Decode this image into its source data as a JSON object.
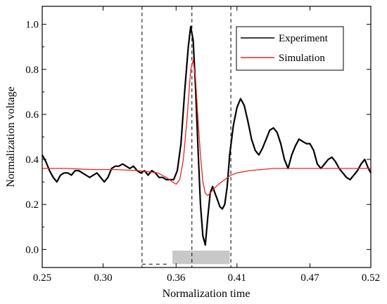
{
  "chart_data": {
    "type": "line",
    "xlabel": "Normalization time",
    "ylabel": "Normalization voltage",
    "xlim": [
      0.25,
      0.52
    ],
    "ylim": [
      -0.08,
      1.08
    ],
    "xticks": [
      "0.25",
      "0.30",
      "0.36",
      "0.41",
      "0.47",
      "0.52"
    ],
    "xtick_values": [
      0.25,
      0.3,
      0.36,
      0.41,
      0.47,
      0.52
    ],
    "yticks": [
      "0.0",
      "0.2",
      "0.4",
      "0.6",
      "0.8",
      "1.0"
    ],
    "ytick_values": [
      0.0,
      0.2,
      0.4,
      0.6,
      0.8,
      1.0
    ],
    "grid": false,
    "legend_position": "top-right",
    "series": [
      {
        "name": "Experiment",
        "color": "#000000",
        "x": [
          0.25,
          0.253,
          0.256,
          0.259,
          0.262,
          0.265,
          0.268,
          0.271,
          0.274,
          0.277,
          0.28,
          0.283,
          0.286,
          0.289,
          0.292,
          0.295,
          0.298,
          0.301,
          0.304,
          0.307,
          0.31,
          0.313,
          0.316,
          0.319,
          0.322,
          0.325,
          0.328,
          0.331,
          0.334,
          0.337,
          0.34,
          0.343,
          0.346,
          0.349,
          0.352,
          0.355,
          0.358,
          0.361,
          0.364,
          0.367,
          0.37,
          0.372,
          0.374,
          0.376,
          0.378,
          0.38,
          0.382,
          0.384,
          0.386,
          0.388,
          0.39,
          0.392,
          0.394,
          0.396,
          0.398,
          0.4,
          0.402,
          0.404,
          0.407,
          0.41,
          0.413,
          0.416,
          0.419,
          0.422,
          0.425,
          0.428,
          0.431,
          0.434,
          0.437,
          0.44,
          0.443,
          0.446,
          0.449,
          0.452,
          0.455,
          0.458,
          0.461,
          0.464,
          0.467,
          0.47,
          0.473,
          0.476,
          0.479,
          0.482,
          0.485,
          0.488,
          0.491,
          0.494,
          0.497,
          0.5,
          0.503,
          0.506,
          0.509,
          0.512,
          0.515,
          0.518,
          0.52
        ],
        "y": [
          0.42,
          0.39,
          0.35,
          0.32,
          0.3,
          0.33,
          0.34,
          0.34,
          0.33,
          0.35,
          0.35,
          0.34,
          0.33,
          0.32,
          0.33,
          0.34,
          0.32,
          0.3,
          0.32,
          0.36,
          0.37,
          0.37,
          0.38,
          0.37,
          0.36,
          0.37,
          0.35,
          0.34,
          0.35,
          0.33,
          0.35,
          0.34,
          0.32,
          0.32,
          0.31,
          0.31,
          0.31,
          0.35,
          0.47,
          0.7,
          0.9,
          0.99,
          0.93,
          0.72,
          0.45,
          0.2,
          0.06,
          0.02,
          0.14,
          0.25,
          0.28,
          0.25,
          0.22,
          0.19,
          0.18,
          0.2,
          0.28,
          0.42,
          0.55,
          0.63,
          0.67,
          0.64,
          0.57,
          0.49,
          0.44,
          0.42,
          0.45,
          0.49,
          0.53,
          0.54,
          0.52,
          0.47,
          0.4,
          0.36,
          0.42,
          0.46,
          0.49,
          0.48,
          0.47,
          0.47,
          0.44,
          0.38,
          0.36,
          0.38,
          0.4,
          0.41,
          0.39,
          0.36,
          0.34,
          0.32,
          0.31,
          0.33,
          0.35,
          0.38,
          0.4,
          0.36,
          0.34
        ]
      },
      {
        "name": "Simulation",
        "color": "#e8262a",
        "x": [
          0.25,
          0.27,
          0.29,
          0.31,
          0.33,
          0.345,
          0.352,
          0.357,
          0.36,
          0.363,
          0.366,
          0.369,
          0.372,
          0.374,
          0.376,
          0.378,
          0.38,
          0.382,
          0.384,
          0.386,
          0.388,
          0.391,
          0.395,
          0.4,
          0.405,
          0.41,
          0.42,
          0.44,
          0.46,
          0.49,
          0.52
        ],
        "y": [
          0.36,
          0.36,
          0.355,
          0.355,
          0.35,
          0.34,
          0.32,
          0.3,
          0.29,
          0.31,
          0.4,
          0.58,
          0.8,
          0.84,
          0.76,
          0.58,
          0.42,
          0.3,
          0.25,
          0.24,
          0.25,
          0.27,
          0.29,
          0.31,
          0.33,
          0.34,
          0.35,
          0.36,
          0.36,
          0.36,
          0.36
        ]
      }
    ],
    "reference_lines": [
      {
        "orientation": "vertical",
        "x": 0.332,
        "style": "dashed"
      },
      {
        "orientation": "vertical",
        "x": 0.373,
        "style": "dashed"
      },
      {
        "orientation": "vertical",
        "x": 0.405,
        "style": "dashed"
      }
    ],
    "highlight_band": {
      "x_start": 0.357,
      "x_end": 0.404,
      "y_from": -0.065,
      "y_to": -0.005,
      "color": "#c8c8c8"
    },
    "bottom_marker": {
      "x_start": 0.332,
      "x_end": 0.354,
      "y": -0.065,
      "style": "dashed"
    }
  }
}
